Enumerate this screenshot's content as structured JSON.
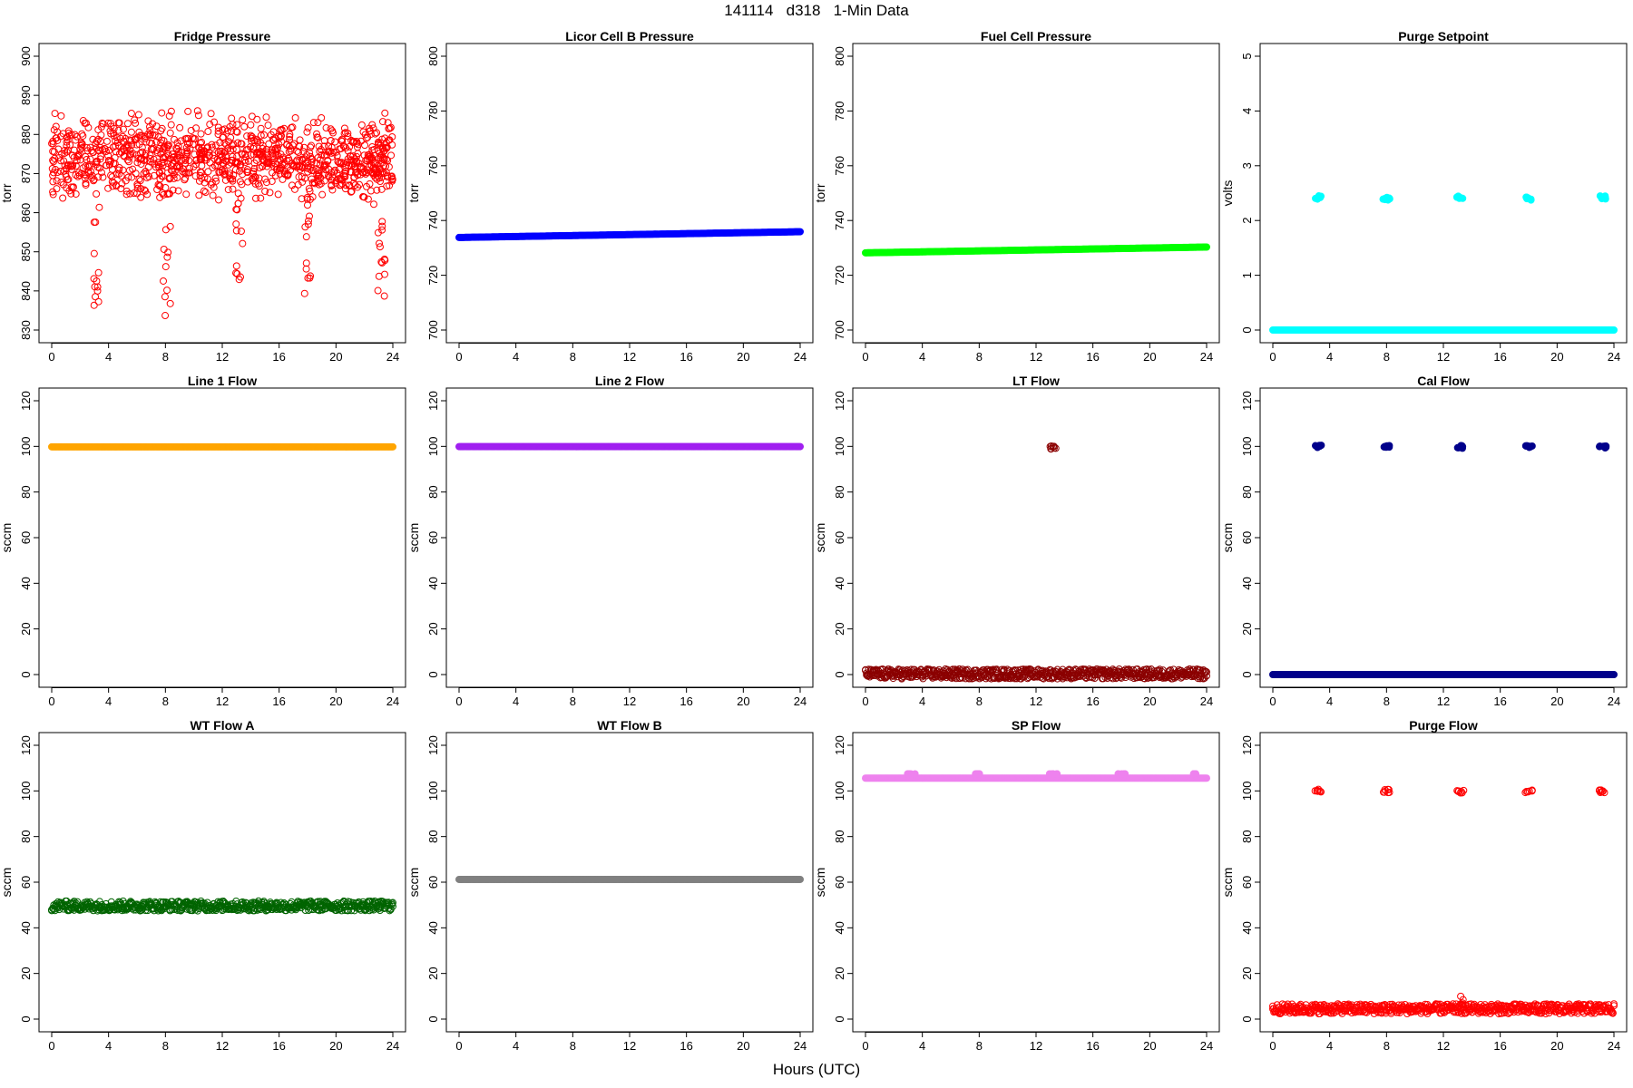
{
  "page": {
    "title": "141114   d318   1-Min Data",
    "x_caption": "Hours (UTC)"
  },
  "chart_data": [
    {
      "type": "scatter",
      "title": "Fridge Pressure",
      "ylabel": "torr",
      "ylim": [
        830,
        900
      ],
      "yticks": [
        830,
        840,
        850,
        860,
        870,
        880,
        890,
        900
      ],
      "xlim": [
        0,
        24
      ],
      "xticks": [
        0,
        4,
        8,
        12,
        16,
        20,
        24
      ],
      "series": [
        {
          "color": "#ff0000",
          "style": "open",
          "scatter_low": 864,
          "scatter_high": 884,
          "drops": [
            [
              3.2,
              833
            ],
            [
              8.1,
              832
            ],
            [
              13.2,
              842
            ],
            [
              18.0,
              836
            ],
            [
              23.2,
              831
            ]
          ]
        }
      ]
    },
    {
      "type": "scatter",
      "title": "Licor Cell B Pressure",
      "ylabel": "torr",
      "ylim": [
        700,
        800
      ],
      "yticks": [
        700,
        720,
        740,
        760,
        780,
        800
      ],
      "xlim": [
        0,
        24
      ],
      "xticks": [
        0,
        4,
        8,
        12,
        16,
        20,
        24
      ],
      "series": [
        {
          "color": "#0000ff",
          "style": "dense",
          "x": [
            0,
            24
          ],
          "y": [
            733.8,
            735.9
          ]
        }
      ]
    },
    {
      "type": "scatter",
      "title": "Fuel Cell Pressure",
      "ylabel": "torr",
      "ylim": [
        700,
        800
      ],
      "yticks": [
        700,
        720,
        740,
        760,
        780,
        800
      ],
      "xlim": [
        0,
        24
      ],
      "xticks": [
        0,
        4,
        8,
        12,
        16,
        20,
        24
      ],
      "series": [
        {
          "color": "#00ff00",
          "style": "dense",
          "x": [
            0,
            24
          ],
          "y": [
            728.2,
            730.3
          ]
        }
      ]
    },
    {
      "type": "scatter",
      "title": "Purge Setpoint",
      "ylabel": "volts",
      "ylim": [
        0,
        5
      ],
      "yticks": [
        0,
        1,
        2,
        3,
        4,
        5
      ],
      "xlim": [
        0,
        24
      ],
      "xticks": [
        0,
        4,
        8,
        12,
        16,
        20,
        24
      ],
      "series": [
        {
          "color": "#00ffff",
          "style": "dense",
          "x": [
            0,
            24
          ],
          "y": [
            0,
            0
          ],
          "clusters": [
            [
              3.2,
              2.42
            ],
            [
              8.0,
              2.4
            ],
            [
              13.2,
              2.43
            ],
            [
              18.0,
              2.4
            ],
            [
              23.2,
              2.42
            ]
          ]
        }
      ]
    },
    {
      "type": "scatter",
      "title": "Line 1 Flow",
      "ylabel": "sccm",
      "ylim": [
        0,
        120
      ],
      "yticks": [
        0,
        20,
        40,
        60,
        80,
        100,
        120
      ],
      "xlim": [
        0,
        24
      ],
      "xticks": [
        0,
        4,
        8,
        12,
        16,
        20,
        24
      ],
      "series": [
        {
          "color": "#ffa500",
          "style": "dense",
          "x": [
            0,
            24
          ],
          "y": [
            99.8,
            99.8
          ]
        }
      ]
    },
    {
      "type": "scatter",
      "title": "Line 2 Flow",
      "ylabel": "sccm",
      "ylim": [
        0,
        120
      ],
      "yticks": [
        0,
        20,
        40,
        60,
        80,
        100,
        120
      ],
      "xlim": [
        0,
        24
      ],
      "xticks": [
        0,
        4,
        8,
        12,
        16,
        20,
        24
      ],
      "series": [
        {
          "color": "#a020f0",
          "style": "dense",
          "x": [
            0,
            24
          ],
          "y": [
            99.9,
            99.9
          ]
        }
      ]
    },
    {
      "type": "scatter",
      "title": "LT Flow",
      "ylabel": "sccm",
      "ylim": [
        0,
        120
      ],
      "yticks": [
        0,
        20,
        40,
        60,
        80,
        100,
        120
      ],
      "xlim": [
        0,
        24
      ],
      "xticks": [
        0,
        4,
        8,
        12,
        16,
        20,
        24
      ],
      "series": [
        {
          "color": "#8b0000",
          "style": "band",
          "x": [
            0,
            24
          ],
          "y": [
            0.3,
            0.3
          ],
          "clusters": [
            [
              13.2,
              99.5
            ]
          ]
        }
      ]
    },
    {
      "type": "scatter",
      "title": "Cal Flow",
      "ylabel": "sccm",
      "ylim": [
        0,
        120
      ],
      "yticks": [
        0,
        20,
        40,
        60,
        80,
        100,
        120
      ],
      "xlim": [
        0,
        24
      ],
      "xticks": [
        0,
        4,
        8,
        12,
        16,
        20,
        24
      ],
      "series": [
        {
          "color": "#00008b",
          "style": "dense",
          "x": [
            0,
            24
          ],
          "y": [
            0,
            0
          ],
          "clusters": [
            [
              3.2,
              99.8
            ],
            [
              8.0,
              99.8
            ],
            [
              13.2,
              99.8
            ],
            [
              18.0,
              99.8
            ],
            [
              23.2,
              99.8
            ]
          ]
        }
      ]
    },
    {
      "type": "scatter",
      "title": "WT Flow A",
      "ylabel": "sccm",
      "ylim": [
        0,
        120
      ],
      "yticks": [
        0,
        20,
        40,
        60,
        80,
        100,
        120
      ],
      "xlim": [
        0,
        24
      ],
      "xticks": [
        0,
        4,
        8,
        12,
        16,
        20,
        24
      ],
      "series": [
        {
          "color": "#006400",
          "style": "band",
          "x": [
            0,
            24
          ],
          "y": [
            49.6,
            49.6
          ]
        }
      ]
    },
    {
      "type": "scatter",
      "title": "WT Flow B",
      "ylabel": "sccm",
      "ylim": [
        0,
        120
      ],
      "yticks": [
        0,
        20,
        40,
        60,
        80,
        100,
        120
      ],
      "xlim": [
        0,
        24
      ],
      "xticks": [
        0,
        4,
        8,
        12,
        16,
        20,
        24
      ],
      "series": [
        {
          "color": "#808080",
          "style": "dense",
          "x": [
            0,
            24
          ],
          "y": [
            61.2,
            61.2
          ]
        }
      ]
    },
    {
      "type": "scatter",
      "title": "SP Flow",
      "ylabel": "sccm",
      "ylim": [
        0,
        120
      ],
      "yticks": [
        0,
        20,
        40,
        60,
        80,
        100,
        120
      ],
      "xlim": [
        0,
        24
      ],
      "xticks": [
        0,
        4,
        8,
        12,
        16,
        20,
        24
      ],
      "series": [
        {
          "color": "#ee82ee",
          "style": "dense",
          "x": [
            0,
            24
          ],
          "y": [
            105.6,
            105.6
          ],
          "bumps": [
            [
              3.2,
              107.5
            ],
            [
              8.0,
              107.5
            ],
            [
              13.2,
              107.5
            ],
            [
              18.0,
              107.5
            ],
            [
              23.2,
              107.5
            ]
          ]
        }
      ]
    },
    {
      "type": "scatter",
      "title": "Purge Flow",
      "ylabel": "sccm",
      "ylim": [
        0,
        120
      ],
      "yticks": [
        0,
        20,
        40,
        60,
        80,
        100,
        120
      ],
      "xlim": [
        0,
        24
      ],
      "xticks": [
        0,
        4,
        8,
        12,
        16,
        20,
        24
      ],
      "series": [
        {
          "color": "#ff0000",
          "style": "band",
          "x": [
            0,
            24
          ],
          "y": [
            4.5,
            4.5
          ],
          "clusters": [
            [
              3.2,
              100
            ],
            [
              8.0,
              100
            ],
            [
              13.2,
              99.8
            ],
            [
              18.0,
              100
            ],
            [
              23.2,
              100
            ]
          ],
          "spike": [
            13.3,
            10
          ]
        }
      ]
    }
  ]
}
